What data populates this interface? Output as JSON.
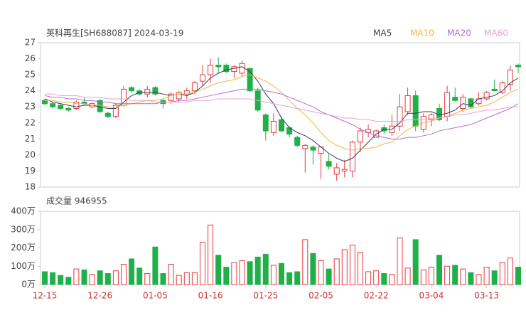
{
  "chart_data": [
    {
      "type": "candlestick",
      "title": "英科再生[SH688087] 2024-03-19",
      "open": [
        23.4,
        23.2,
        23.1,
        22.9,
        22.9,
        23.3,
        23.0,
        23.4,
        22.6,
        22.4,
        23.1,
        24.2,
        24.0,
        23.8,
        24.2,
        23.4,
        23.4,
        23.5,
        23.8,
        24.0,
        24.6,
        25.0,
        25.6,
        25.6,
        25.2,
        25.1,
        25.4,
        24.0,
        22.5,
        21.4,
        22.2,
        21.7,
        21.1,
        20.4,
        20.5,
        20.1,
        19.6,
        18.8,
        19.0,
        19.0,
        20.8,
        21.4,
        21.1,
        21.7,
        21.4,
        21.8,
        22.7,
        23.7,
        21.6,
        22.2,
        22.9,
        22.4,
        23.6,
        22.9,
        23.5,
        23.2,
        23.5,
        24.1,
        23.9,
        24.4,
        25.6
      ],
      "high": [
        23.5,
        23.3,
        23.2,
        23.0,
        23.4,
        23.6,
        23.3,
        23.5,
        22.7,
        23.2,
        24.3,
        24.3,
        24.1,
        24.3,
        24.3,
        23.5,
        23.9,
        24.0,
        24.2,
        24.6,
        25.6,
        26.0,
        26.1,
        25.7,
        25.6,
        25.9,
        25.4,
        24.2,
        22.6,
        22.6,
        22.4,
        21.8,
        21.2,
        20.7,
        20.6,
        20.5,
        20.1,
        19.5,
        19.7,
        20.9,
        21.7,
        21.9,
        21.6,
        21.9,
        22.5,
        23.8,
        24.2,
        24.0,
        22.6,
        22.6,
        23.2,
        24.3,
        24.2,
        23.8,
        23.6,
        23.9,
        24.0,
        24.7,
        24.6,
        25.6,
        25.7
      ],
      "low": [
        23.1,
        22.9,
        22.8,
        22.7,
        22.8,
        23.1,
        22.9,
        22.6,
        22.3,
        22.3,
        23.0,
        23.9,
        23.7,
        23.6,
        23.7,
        22.9,
        23.2,
        23.3,
        23.5,
        23.8,
        24.3,
        24.5,
        25.1,
        25.1,
        24.8,
        24.9,
        23.9,
        22.7,
        20.9,
        21.2,
        21.4,
        21.1,
        20.5,
        18.9,
        19.4,
        18.5,
        19.1,
        18.4,
        18.6,
        18.6,
        20.2,
        21.1,
        21.1,
        21.3,
        21.2,
        21.5,
        22.5,
        21.5,
        21.4,
        21.8,
        22.1,
        22.1,
        23.3,
        22.7,
        22.9,
        23.1,
        23.4,
        24.0,
        23.8,
        24.0,
        25.1
      ],
      "close": [
        23.2,
        23.0,
        22.9,
        22.8,
        23.3,
        23.2,
        23.2,
        22.7,
        22.4,
        23.1,
        24.1,
        24.0,
        23.8,
        24.1,
        23.8,
        23.2,
        23.8,
        23.9,
        24.0,
        24.5,
        25.0,
        25.6,
        25.5,
        25.2,
        25.5,
        25.7,
        24.0,
        22.8,
        21.5,
        22.1,
        21.5,
        21.3,
        20.6,
        20.6,
        20.3,
        20.5,
        19.3,
        19.2,
        19.1,
        20.8,
        21.5,
        21.6,
        21.5,
        21.5,
        21.8,
        23.0,
        23.7,
        21.8,
        22.4,
        22.5,
        22.2,
        23.9,
        23.4,
        23.6,
        23.0,
        23.5,
        23.9,
        24.0,
        24.5,
        25.3,
        25.5
      ],
      "up_color": "#e8383d",
      "down_color": "#1fb04a",
      "series": [
        {
          "name": "MA5",
          "color": "#3a3a5c",
          "values": [
            23.5,
            23.3,
            23.2,
            23.1,
            23.0,
            23.1,
            23.1,
            23.0,
            22.9,
            22.9,
            23.3,
            23.7,
            23.9,
            23.9,
            23.9,
            23.8,
            23.7,
            23.8,
            23.7,
            23.9,
            24.3,
            24.8,
            25.1,
            25.3,
            25.4,
            25.5,
            25.2,
            24.6,
            23.8,
            23.2,
            22.3,
            21.7,
            21.4,
            21.2,
            20.9,
            20.5,
            20.1,
            19.8,
            19.6,
            19.8,
            20.3,
            20.8,
            21.3,
            21.6,
            21.6,
            22.0,
            22.6,
            22.6,
            22.7,
            22.7,
            22.5,
            22.6,
            22.8,
            23.2,
            23.1,
            23.5,
            23.6,
            23.7,
            24.0,
            24.5,
            24.8
          ]
        },
        {
          "name": "MA10",
          "color": "#f2b544",
          "values": [
            23.4,
            23.4,
            23.3,
            23.3,
            23.2,
            23.2,
            23.1,
            23.1,
            23.0,
            23.0,
            23.1,
            23.2,
            23.3,
            23.4,
            23.4,
            23.5,
            23.7,
            23.8,
            23.8,
            23.9,
            24.1,
            24.3,
            24.5,
            24.6,
            24.7,
            24.9,
            25.0,
            24.8,
            24.6,
            24.3,
            23.9,
            23.4,
            22.9,
            22.5,
            22.0,
            21.4,
            20.9,
            20.6,
            20.4,
            20.3,
            20.4,
            20.4,
            20.5,
            20.7,
            20.8,
            21.2,
            21.6,
            21.8,
            22.0,
            22.1,
            22.3,
            22.4,
            22.6,
            22.8,
            22.9,
            23.0,
            23.1,
            23.3,
            23.6,
            23.9,
            24.1
          ]
        },
        {
          "name": "MA20",
          "color": "#b06fd6",
          "values": [
            23.7,
            23.6,
            23.6,
            23.5,
            23.5,
            23.4,
            23.4,
            23.3,
            23.3,
            23.2,
            23.2,
            23.2,
            23.2,
            23.2,
            23.2,
            23.3,
            23.3,
            23.4,
            23.4,
            23.5,
            23.6,
            23.7,
            23.8,
            23.9,
            24.0,
            24.1,
            24.1,
            24.1,
            24.0,
            23.9,
            23.8,
            23.6,
            23.4,
            23.2,
            23.0,
            22.7,
            22.5,
            22.3,
            22.1,
            21.9,
            21.6,
            21.4,
            21.2,
            21.1,
            21.0,
            21.0,
            21.1,
            21.1,
            21.2,
            21.3,
            21.5,
            21.6,
            21.7,
            21.8,
            21.9,
            22.1,
            22.3,
            22.5,
            22.7,
            22.9,
            23.2
          ]
        },
        {
          "name": "MA60",
          "color": "#ef9fd2",
          "values": [
            23.8,
            23.8,
            23.7,
            23.7,
            23.7,
            23.6,
            23.6,
            23.6,
            23.5,
            23.5,
            23.5,
            23.4,
            23.4,
            23.4,
            23.3,
            23.3,
            23.3,
            23.3,
            23.3,
            23.4,
            23.4,
            23.4,
            23.5,
            23.5,
            23.5,
            23.5,
            23.5,
            23.4,
            23.3,
            23.2,
            23.1,
            23.0,
            22.9,
            22.8,
            22.7,
            22.6,
            22.5,
            22.4,
            22.3,
            22.3,
            22.2,
            22.2,
            22.1,
            22.1,
            22.1,
            22.1,
            22.2,
            22.2,
            22.2,
            22.3,
            22.3,
            22.4,
            22.5,
            22.5,
            22.6,
            22.7,
            22.8,
            22.8,
            22.9,
            23.0,
            23.0
          ]
        }
      ],
      "ylim": [
        18,
        27
      ],
      "yticks": [
        18,
        19,
        20,
        21,
        22,
        23,
        24,
        25,
        26,
        27
      ]
    },
    {
      "type": "bar",
      "title": "成交量 946955",
      "categories": [
        "12-15",
        null,
        null,
        null,
        null,
        null,
        null,
        "12-26",
        null,
        null,
        null,
        null,
        null,
        null,
        "01-05",
        null,
        null,
        null,
        null,
        null,
        null,
        "01-16",
        null,
        null,
        null,
        null,
        null,
        null,
        "01-25",
        null,
        null,
        null,
        null,
        null,
        null,
        "02-05",
        null,
        null,
        null,
        null,
        null,
        null,
        "02-22",
        null,
        null,
        null,
        null,
        null,
        null,
        "03-04",
        null,
        null,
        null,
        null,
        null,
        null,
        "03-13",
        null,
        null,
        null,
        null
      ],
      "values": [
        70,
        65,
        50,
        40,
        85,
        80,
        55,
        75,
        60,
        75,
        110,
        140,
        90,
        60,
        205,
        60,
        110,
        50,
        65,
        65,
        230,
        325,
        160,
        95,
        120,
        130,
        125,
        150,
        165,
        105,
        115,
        65,
        70,
        245,
        170,
        130,
        85,
        140,
        190,
        215,
        175,
        70,
        75,
        60,
        55,
        255,
        90,
        245,
        80,
        95,
        160,
        100,
        105,
        85,
        65,
        55,
        95,
        75,
        120,
        145,
        95
      ],
      "ylim": [
        0,
        400
      ],
      "yticks": [
        {
          "value": 0,
          "label": "0万"
        },
        {
          "value": 100,
          "label": "100万"
        },
        {
          "value": 200,
          "label": "200万"
        },
        {
          "value": 300,
          "label": "300万"
        },
        {
          "value": 400,
          "label": "400万"
        }
      ],
      "xtick_color": "#d03030"
    }
  ]
}
